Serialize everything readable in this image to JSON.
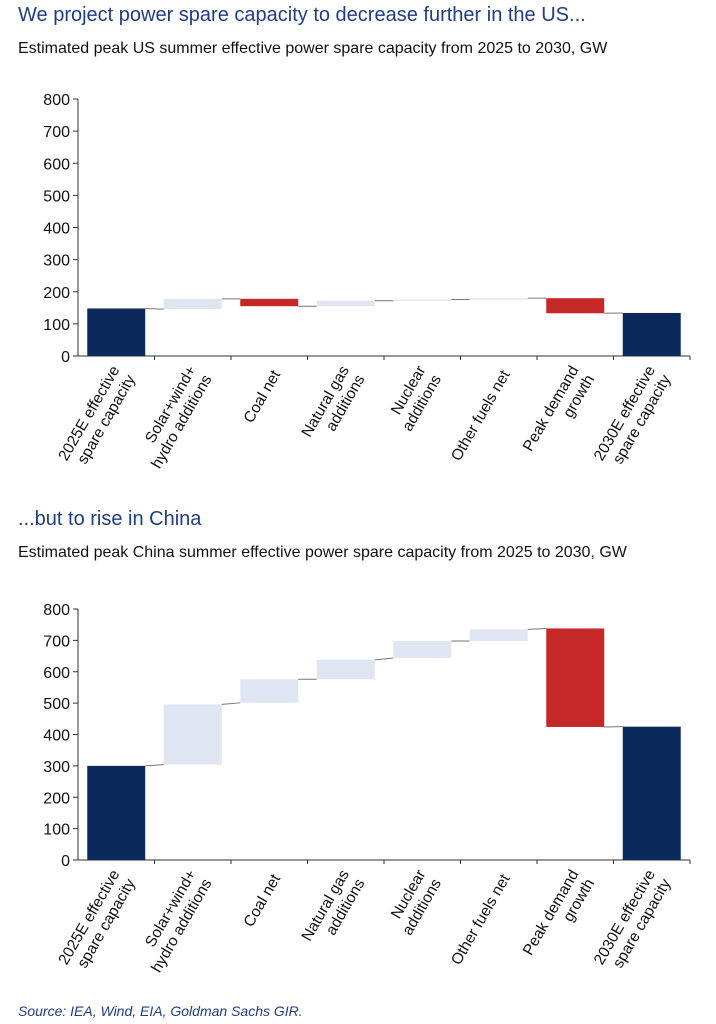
{
  "colors": {
    "total": "#0b2a5b",
    "increase": "#dfe6f2",
    "decrease": "#c62828",
    "headline": "#1f3c88"
  },
  "chart_data": [
    {
      "type": "bar",
      "variant": "waterfall",
      "headline": "We project power spare capacity to decrease further in the US...",
      "title": "Estimated peak US summer effective power spare capacity from 2025 to 2030, GW",
      "ylim": [
        0,
        800
      ],
      "yticks": [
        "0",
        "100",
        "200",
        "300",
        "400",
        "500",
        "600",
        "700",
        "800"
      ],
      "categories": [
        [
          "2025E effective",
          "spare capacity"
        ],
        [
          "Solar+wind+",
          "hydro additions"
        ],
        [
          "Coal net"
        ],
        [
          "Natural gas",
          "additions"
        ],
        [
          "Nuclear",
          "additions"
        ],
        [
          "Other fuels net"
        ],
        [
          "Peak demand",
          "growth"
        ],
        [
          "2030E effective",
          "spare capacity"
        ]
      ],
      "bars": [
        {
          "kind": "total",
          "start": 0,
          "end": 148
        },
        {
          "kind": "increase",
          "start": 146,
          "end": 178
        },
        {
          "kind": "decrease",
          "start": 178,
          "end": 155
        },
        {
          "kind": "increase",
          "start": 155,
          "end": 172
        },
        {
          "kind": "increase",
          "start": 172,
          "end": 176
        },
        {
          "kind": "increase",
          "start": 176,
          "end": 180
        },
        {
          "kind": "decrease",
          "start": 180,
          "end": 133
        },
        {
          "kind": "total",
          "start": 0,
          "end": 134
        }
      ]
    },
    {
      "type": "bar",
      "variant": "waterfall",
      "headline": "...but to rise in China",
      "title": "Estimated peak China summer effective power spare capacity from 2025 to 2030, GW",
      "ylim": [
        0,
        800
      ],
      "yticks": [
        "0",
        "100",
        "200",
        "300",
        "400",
        "500",
        "600",
        "700",
        "800"
      ],
      "categories": [
        [
          "2025E effective",
          "spare capacity"
        ],
        [
          "Solar+wind+",
          "hydro additions"
        ],
        [
          "Coal net"
        ],
        [
          "Natural gas",
          "additions"
        ],
        [
          "Nuclear",
          "additions"
        ],
        [
          "Other fuels net"
        ],
        [
          "Peak demand",
          "growth"
        ],
        [
          "2030E effective",
          "spare capacity"
        ]
      ],
      "bars": [
        {
          "kind": "total",
          "start": 0,
          "end": 300
        },
        {
          "kind": "increase",
          "start": 304,
          "end": 496
        },
        {
          "kind": "increase",
          "start": 501,
          "end": 576
        },
        {
          "kind": "increase",
          "start": 576,
          "end": 638
        },
        {
          "kind": "increase",
          "start": 644,
          "end": 698
        },
        {
          "kind": "increase",
          "start": 698,
          "end": 735
        },
        {
          "kind": "decrease",
          "start": 738,
          "end": 424
        },
        {
          "kind": "total",
          "start": 0,
          "end": 425
        }
      ]
    }
  ],
  "source": "Source: IEA, Wind, EIA, Goldman Sachs GIR."
}
